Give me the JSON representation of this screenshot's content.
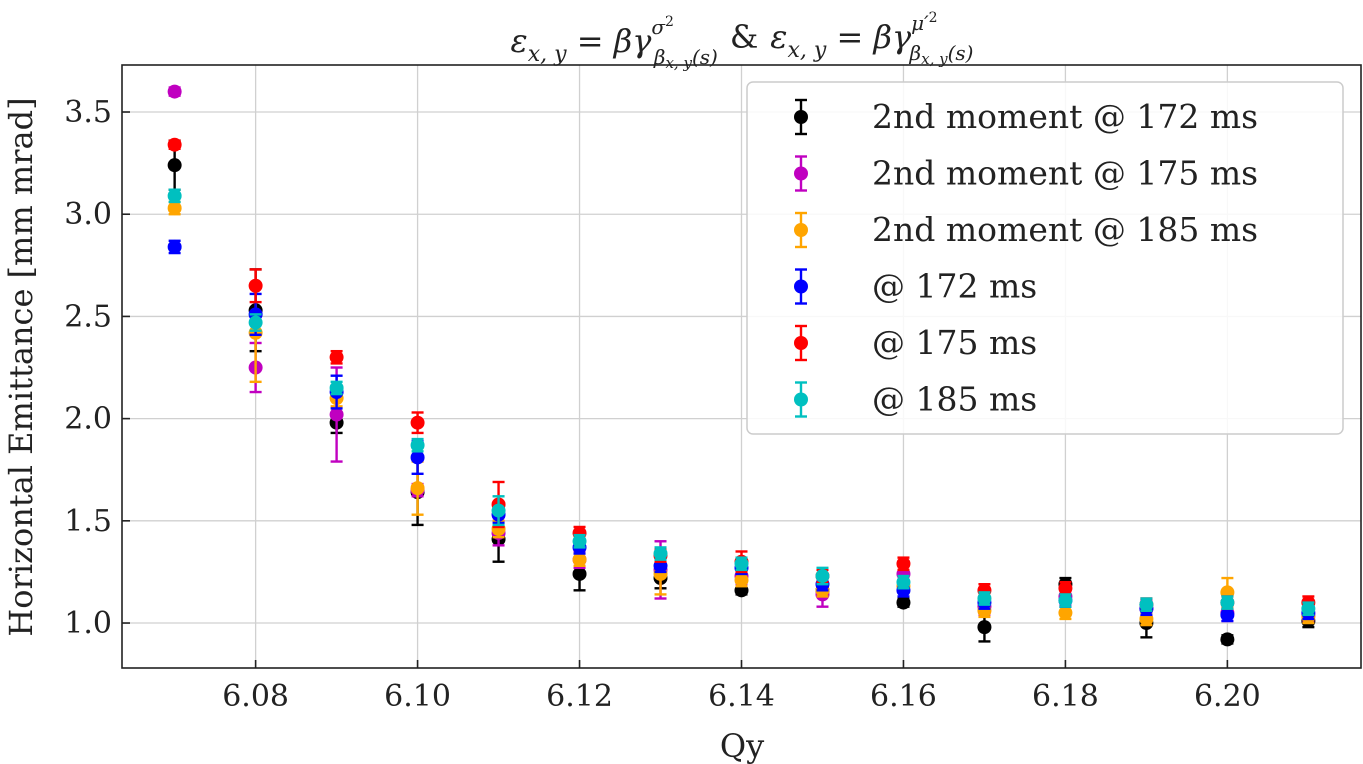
{
  "chart_data": {
    "type": "scatter",
    "title": "ε_{x,y} = βγ σ²/β_{x,y}(s) & ε_{x,y} = βγ μ′²/β_{x,y}(s)",
    "title_parts": {
      "eps": "ε",
      "eps_sub": "x, y",
      "equals": " = ",
      "bg": "βγ",
      "num1": "σ",
      "num2": "μ′",
      "sq": "2",
      "den_beta": "β",
      "den_sub": "x, y",
      "den_s": "(s)",
      "amp": "&"
    },
    "xlabel": "Qy",
    "ylabel": "Horizontal Emittance [mm mrad]",
    "xlim": [
      6.0635,
      6.2165
    ],
    "ylim": [
      0.78,
      3.73
    ],
    "xticks": [
      6.08,
      6.1,
      6.12,
      6.14,
      6.16,
      6.18,
      6.2
    ],
    "xtick_labels": [
      "6.08",
      "6.10",
      "6.12",
      "6.14",
      "6.16",
      "6.18",
      "6.20"
    ],
    "yticks": [
      1.0,
      1.5,
      2.0,
      2.5,
      3.0,
      3.5
    ],
    "ytick_labels": [
      "1.0",
      "1.5",
      "2.0",
      "2.5",
      "3.0",
      "3.5"
    ],
    "grid": true,
    "legend_position": "top-right",
    "x": [
      6.07,
      6.08,
      6.09,
      6.1,
      6.11,
      6.12,
      6.13,
      6.14,
      6.15,
      6.16,
      6.17,
      6.18,
      6.19,
      6.2,
      6.21
    ],
    "series": [
      {
        "name": "2nd moment @ 172 ms",
        "color": "#000000",
        "values": [
          3.24,
          2.53,
          1.98,
          1.64,
          1.41,
          1.24,
          1.22,
          1.16,
          1.16,
          1.1,
          0.98,
          1.19,
          1.0,
          0.92,
          1.01
        ],
        "errors": [
          0.12,
          0.2,
          0.05,
          0.16,
          0.11,
          0.08,
          0.05,
          0.02,
          0.03,
          0.02,
          0.07,
          0.03,
          0.07,
          0.02,
          0.03
        ]
      },
      {
        "name": "2nd moment @ 175 ms",
        "color": "#c000c0",
        "values": [
          3.6,
          2.25,
          2.02,
          1.65,
          1.44,
          1.31,
          1.26,
          1.23,
          1.14,
          1.24,
          1.08,
          1.13,
          1.07,
          1.05,
          1.04
        ],
        "errors": [
          0.02,
          0.12,
          0.23,
          0.03,
          0.06,
          0.04,
          0.14,
          0.04,
          0.06,
          0.04,
          0.04,
          0.04,
          0.04,
          0.04,
          0.03
        ]
      },
      {
        "name": "2nd moment @ 185 ms",
        "color": "#ffa500",
        "values": [
          3.03,
          2.42,
          2.1,
          1.66,
          1.46,
          1.31,
          1.24,
          1.21,
          1.16,
          1.18,
          1.06,
          1.05,
          1.02,
          1.15,
          1.03
        ],
        "errors": [
          0.03,
          0.24,
          0.04,
          0.13,
          0.04,
          0.03,
          0.1,
          0.03,
          0.03,
          0.03,
          0.03,
          0.03,
          0.03,
          0.07,
          0.03
        ]
      },
      {
        "name": "@ 172 ms",
        "color": "#0000ff",
        "values": [
          2.84,
          2.51,
          2.13,
          1.81,
          1.53,
          1.37,
          1.28,
          1.27,
          1.19,
          1.16,
          1.1,
          1.11,
          1.07,
          1.04,
          1.05
        ],
        "errors": [
          0.03,
          0.1,
          0.08,
          0.08,
          0.04,
          0.03,
          0.03,
          0.03,
          0.03,
          0.03,
          0.03,
          0.03,
          0.03,
          0.03,
          0.03
        ]
      },
      {
        "name": "@ 175 ms",
        "color": "#ff0000",
        "values": [
          3.34,
          2.65,
          2.3,
          1.98,
          1.58,
          1.44,
          1.33,
          1.3,
          1.23,
          1.29,
          1.16,
          1.17,
          1.09,
          1.1,
          1.1
        ],
        "errors": [
          0.02,
          0.08,
          0.03,
          0.05,
          0.11,
          0.03,
          0.03,
          0.05,
          0.03,
          0.03,
          0.03,
          0.03,
          0.03,
          0.03,
          0.03
        ]
      },
      {
        "name": "@ 185 ms",
        "color": "#00c0c0",
        "values": [
          3.09,
          2.47,
          2.15,
          1.87,
          1.55,
          1.4,
          1.34,
          1.29,
          1.23,
          1.2,
          1.12,
          1.11,
          1.09,
          1.1,
          1.07
        ],
        "errors": [
          0.03,
          0.04,
          0.03,
          0.03,
          0.07,
          0.03,
          0.03,
          0.03,
          0.04,
          0.03,
          0.03,
          0.03,
          0.03,
          0.03,
          0.03
        ]
      }
    ]
  }
}
